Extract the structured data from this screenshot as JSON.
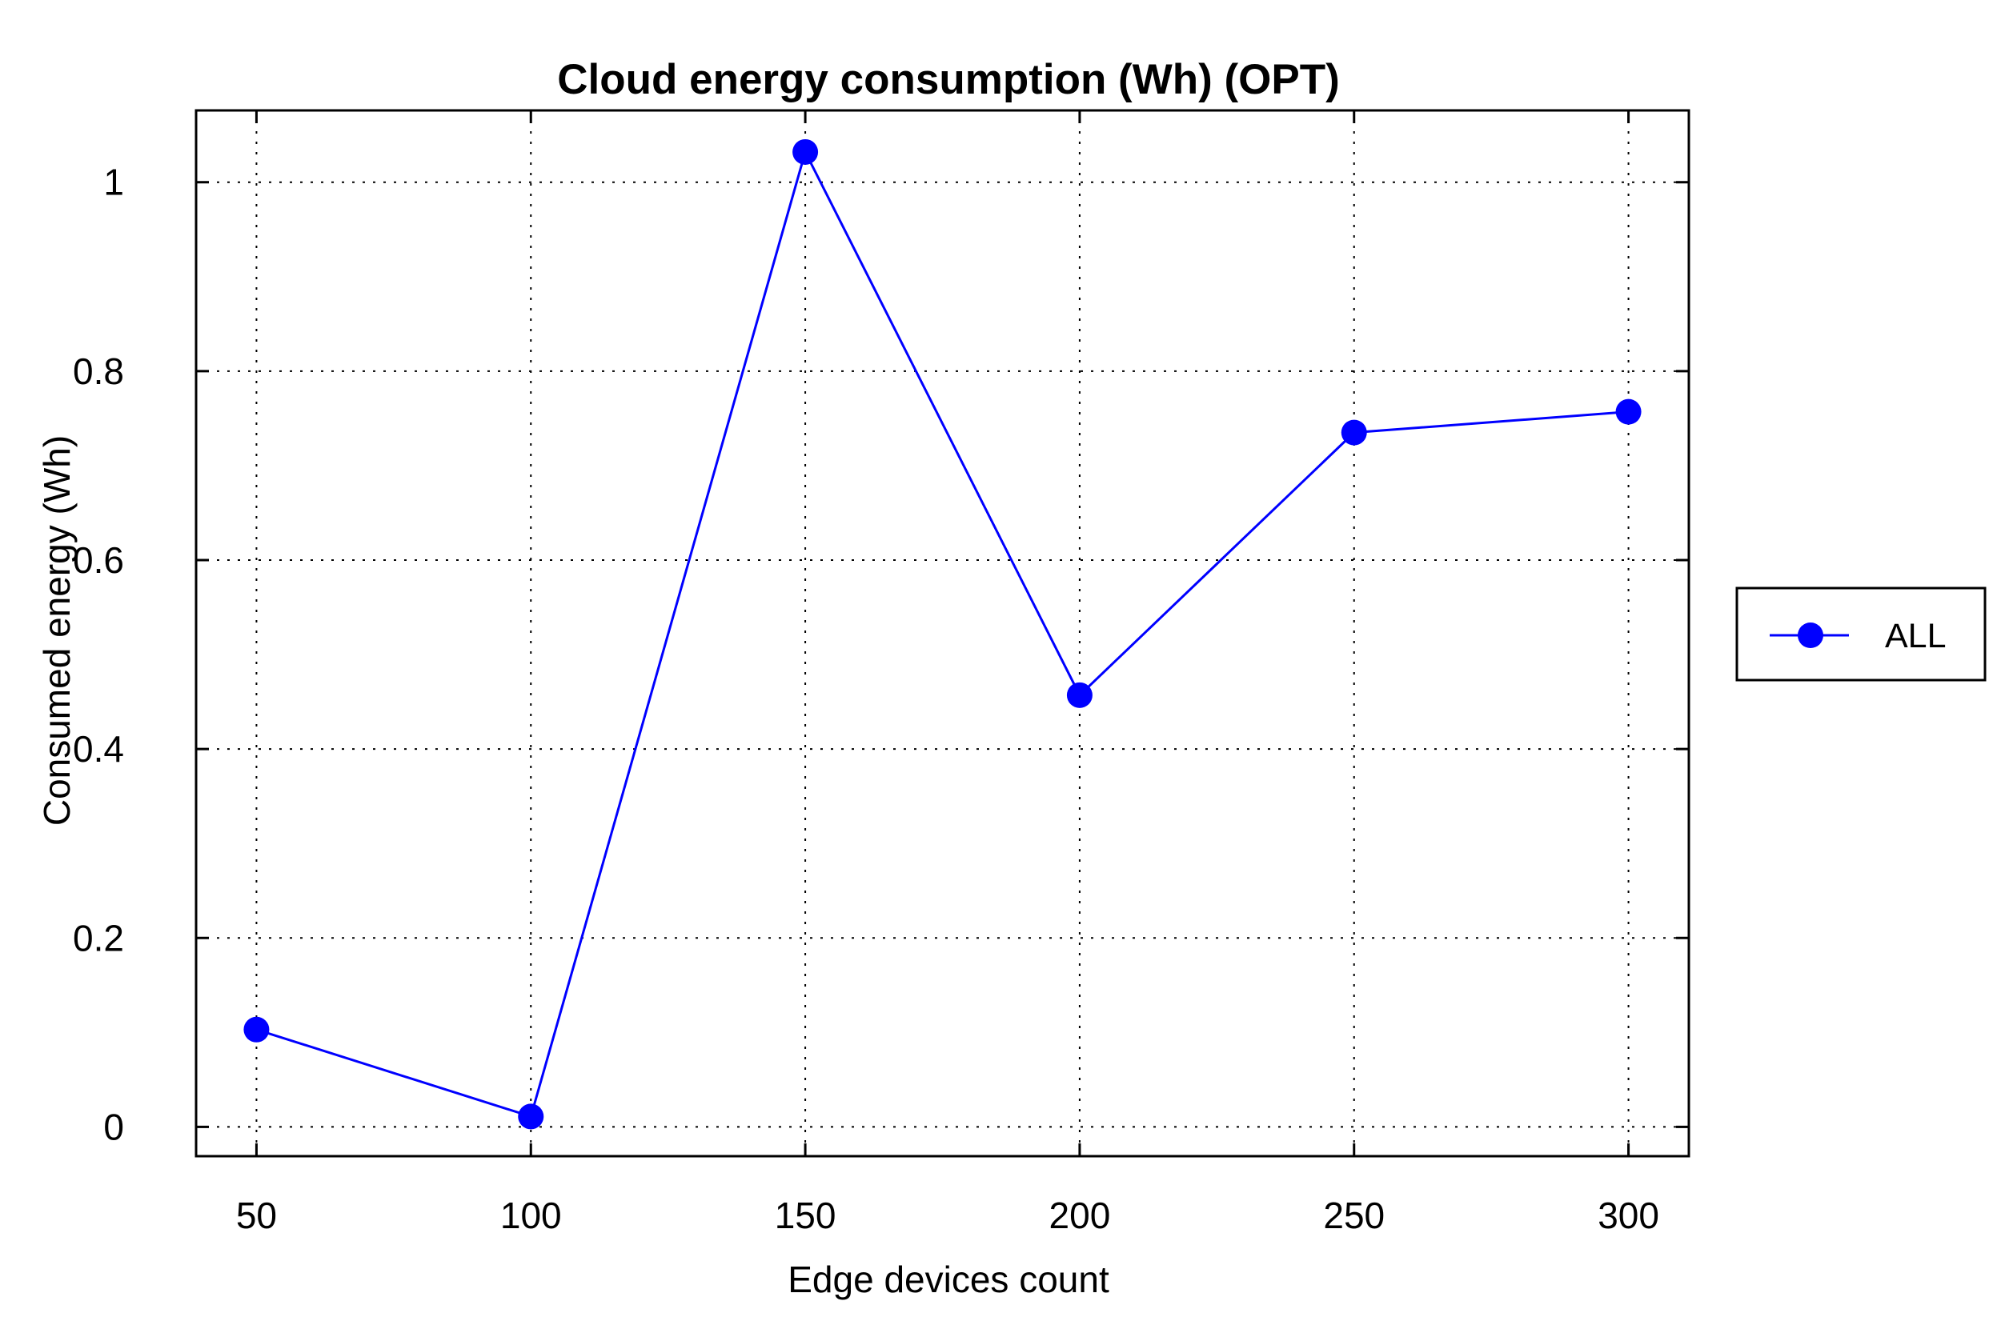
{
  "chart_data": {
    "type": "line",
    "title": "Cloud energy consumption (Wh) (OPT)",
    "xlabel": "Edge devices count",
    "ylabel": "Consumed energy (Wh)",
    "x": [
      50,
      100,
      150,
      200,
      250,
      300
    ],
    "x_tick_labels": [
      "50",
      "100",
      "150",
      "200",
      "250",
      "300"
    ],
    "y_tick_values": [
      0,
      0.2,
      0.4,
      0.6,
      0.8,
      1
    ],
    "y_tick_labels": [
      "0",
      "0.2",
      "0.4",
      "0.6",
      "0.8",
      "1"
    ],
    "xlim": [
      39,
      311
    ],
    "ylim": [
      -0.031,
      1.076
    ],
    "grid": true,
    "legend_position": "right",
    "series": [
      {
        "name": "ALL",
        "color": "#0000ff",
        "marker": "circle",
        "values": [
          0.103,
          0.011,
          1.032,
          0.457,
          0.735,
          0.757
        ]
      }
    ]
  }
}
